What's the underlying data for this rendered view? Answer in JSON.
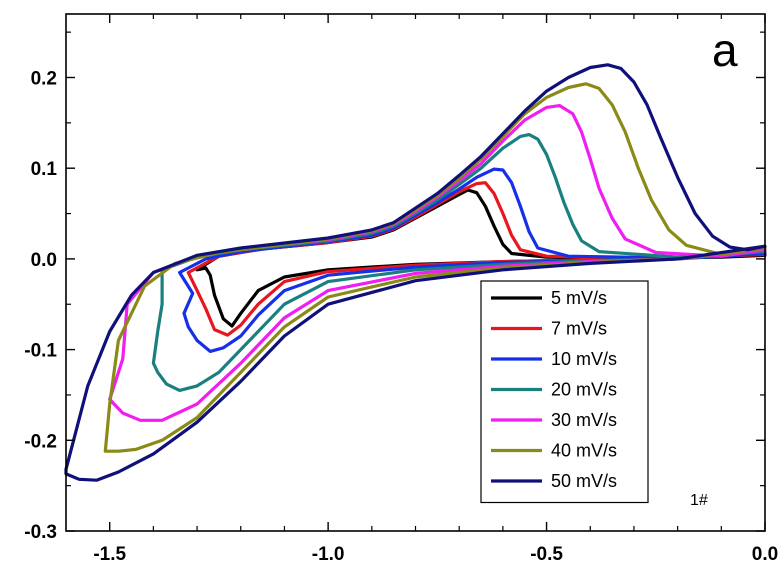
{
  "chart_data": {
    "type": "line",
    "title": "",
    "xlabel": "",
    "ylabel": "",
    "xlim": [
      -1.6,
      0.0
    ],
    "ylim": [
      -0.3,
      0.27
    ],
    "xticks": [
      -1.5,
      -1.0,
      -0.5,
      0.0
    ],
    "xtick_labels": [
      "-1.5",
      "-1.0",
      "-0.5",
      "0.0"
    ],
    "yticks": [
      -0.3,
      -0.2,
      -0.1,
      0.0,
      0.1,
      0.2
    ],
    "ytick_labels": [
      "-0.3",
      "-0.2",
      "-0.1",
      "0.0",
      "0.1",
      "0.2"
    ],
    "grid": false,
    "legend_position": "bottom-right",
    "panel_label": "a",
    "annotation": "1#",
    "series": [
      {
        "name": "5 mV/s",
        "color": "#000000",
        "upper": [
          [
            -1.3,
            -0.012
          ],
          [
            -1.25,
            0.003
          ],
          [
            -1.15,
            0.011
          ],
          [
            -1.0,
            0.018
          ],
          [
            -0.9,
            0.024
          ],
          [
            -0.85,
            0.032
          ],
          [
            -0.8,
            0.045
          ],
          [
            -0.75,
            0.058
          ],
          [
            -0.7,
            0.071
          ],
          [
            -0.68,
            0.076
          ],
          [
            -0.66,
            0.073
          ],
          [
            -0.64,
            0.058
          ],
          [
            -0.62,
            0.036
          ],
          [
            -0.6,
            0.016
          ],
          [
            -0.58,
            0.006
          ],
          [
            -0.5,
            0.002
          ],
          [
            -0.3,
            0.001
          ],
          [
            -0.1,
            0.002
          ],
          [
            0.0,
            0.004
          ]
        ],
        "lower": [
          [
            0.0,
            0.004
          ],
          [
            -0.2,
            0.001
          ],
          [
            -0.4,
            -0.001
          ],
          [
            -0.6,
            -0.003
          ],
          [
            -0.8,
            -0.006
          ],
          [
            -1.0,
            -0.012
          ],
          [
            -1.1,
            -0.02
          ],
          [
            -1.16,
            -0.035
          ],
          [
            -1.2,
            -0.06
          ],
          [
            -1.22,
            -0.074
          ],
          [
            -1.24,
            -0.066
          ],
          [
            -1.26,
            -0.04
          ],
          [
            -1.27,
            -0.018
          ],
          [
            -1.28,
            -0.01
          ],
          [
            -1.3,
            -0.012
          ]
        ]
      },
      {
        "name": "7 mV/s",
        "color": "#e8161e",
        "upper": [
          [
            -1.32,
            -0.015
          ],
          [
            -1.25,
            0.003
          ],
          [
            -1.15,
            0.011
          ],
          [
            -1.0,
            0.018
          ],
          [
            -0.9,
            0.025
          ],
          [
            -0.85,
            0.033
          ],
          [
            -0.8,
            0.046
          ],
          [
            -0.75,
            0.06
          ],
          [
            -0.7,
            0.074
          ],
          [
            -0.66,
            0.083
          ],
          [
            -0.64,
            0.084
          ],
          [
            -0.62,
            0.072
          ],
          [
            -0.6,
            0.05
          ],
          [
            -0.58,
            0.026
          ],
          [
            -0.56,
            0.01
          ],
          [
            -0.5,
            0.003
          ],
          [
            -0.3,
            0.001
          ],
          [
            -0.1,
            0.003
          ],
          [
            0.0,
            0.005
          ]
        ],
        "lower": [
          [
            0.0,
            0.005
          ],
          [
            -0.2,
            0.001
          ],
          [
            -0.4,
            -0.001
          ],
          [
            -0.6,
            -0.003
          ],
          [
            -0.8,
            -0.007
          ],
          [
            -1.0,
            -0.014
          ],
          [
            -1.1,
            -0.025
          ],
          [
            -1.16,
            -0.05
          ],
          [
            -1.2,
            -0.073
          ],
          [
            -1.23,
            -0.084
          ],
          [
            -1.26,
            -0.078
          ],
          [
            -1.28,
            -0.055
          ],
          [
            -1.3,
            -0.035
          ],
          [
            -1.31,
            -0.025
          ],
          [
            -1.32,
            -0.015
          ]
        ]
      },
      {
        "name": "10 mV/s",
        "color": "#1530e8",
        "upper": [
          [
            -1.34,
            -0.015
          ],
          [
            -1.28,
            0.0
          ],
          [
            -1.2,
            0.008
          ],
          [
            -1.0,
            0.019
          ],
          [
            -0.9,
            0.026
          ],
          [
            -0.85,
            0.034
          ],
          [
            -0.8,
            0.048
          ],
          [
            -0.75,
            0.062
          ],
          [
            -0.7,
            0.077
          ],
          [
            -0.66,
            0.09
          ],
          [
            -0.62,
            0.099
          ],
          [
            -0.6,
            0.098
          ],
          [
            -0.58,
            0.084
          ],
          [
            -0.56,
            0.058
          ],
          [
            -0.54,
            0.03
          ],
          [
            -0.52,
            0.012
          ],
          [
            -0.45,
            0.003
          ],
          [
            -0.2,
            0.001
          ],
          [
            0.0,
            0.006
          ]
        ],
        "lower": [
          [
            0.0,
            0.006
          ],
          [
            -0.2,
            0.0
          ],
          [
            -0.4,
            -0.002
          ],
          [
            -0.6,
            -0.004
          ],
          [
            -0.8,
            -0.009
          ],
          [
            -1.0,
            -0.018
          ],
          [
            -1.1,
            -0.035
          ],
          [
            -1.16,
            -0.062
          ],
          [
            -1.2,
            -0.085
          ],
          [
            -1.24,
            -0.098
          ],
          [
            -1.27,
            -0.102
          ],
          [
            -1.3,
            -0.09
          ],
          [
            -1.32,
            -0.075
          ],
          [
            -1.33,
            -0.06
          ],
          [
            -1.31,
            -0.038
          ],
          [
            -1.34,
            -0.015
          ]
        ]
      },
      {
        "name": "20 mV/s",
        "color": "#1a7f7f",
        "upper": [
          [
            -1.38,
            -0.012
          ],
          [
            -1.3,
            0.002
          ],
          [
            -1.2,
            0.01
          ],
          [
            -1.0,
            0.02
          ],
          [
            -0.9,
            0.028
          ],
          [
            -0.85,
            0.036
          ],
          [
            -0.8,
            0.05
          ],
          [
            -0.75,
            0.065
          ],
          [
            -0.7,
            0.082
          ],
          [
            -0.65,
            0.1
          ],
          [
            -0.6,
            0.122
          ],
          [
            -0.56,
            0.135
          ],
          [
            -0.54,
            0.137
          ],
          [
            -0.52,
            0.132
          ],
          [
            -0.5,
            0.115
          ],
          [
            -0.48,
            0.09
          ],
          [
            -0.46,
            0.062
          ],
          [
            -0.44,
            0.038
          ],
          [
            -0.42,
            0.02
          ],
          [
            -0.38,
            0.008
          ],
          [
            -0.2,
            0.002
          ],
          [
            0.0,
            0.008
          ]
        ],
        "lower": [
          [
            0.0,
            0.008
          ],
          [
            -0.2,
            0.0
          ],
          [
            -0.4,
            -0.002
          ],
          [
            -0.6,
            -0.006
          ],
          [
            -0.8,
            -0.012
          ],
          [
            -1.0,
            -0.025
          ],
          [
            -1.1,
            -0.05
          ],
          [
            -1.18,
            -0.09
          ],
          [
            -1.25,
            -0.125
          ],
          [
            -1.3,
            -0.14
          ],
          [
            -1.34,
            -0.145
          ],
          [
            -1.37,
            -0.138
          ],
          [
            -1.39,
            -0.125
          ],
          [
            -1.4,
            -0.115
          ],
          [
            -1.39,
            -0.08
          ],
          [
            -1.38,
            -0.05
          ],
          [
            -1.38,
            -0.012
          ]
        ]
      },
      {
        "name": "30 mV/s",
        "color": "#f01ef0",
        "upper": [
          [
            -1.46,
            -0.05
          ],
          [
            -1.4,
            -0.015
          ],
          [
            -1.3,
            0.003
          ],
          [
            -1.2,
            0.011
          ],
          [
            -1.0,
            0.021
          ],
          [
            -0.9,
            0.03
          ],
          [
            -0.85,
            0.038
          ],
          [
            -0.8,
            0.052
          ],
          [
            -0.75,
            0.068
          ],
          [
            -0.7,
            0.086
          ],
          [
            -0.65,
            0.105
          ],
          [
            -0.6,
            0.13
          ],
          [
            -0.55,
            0.153
          ],
          [
            -0.5,
            0.167
          ],
          [
            -0.47,
            0.169
          ],
          [
            -0.44,
            0.16
          ],
          [
            -0.42,
            0.14
          ],
          [
            -0.4,
            0.11
          ],
          [
            -0.38,
            0.078
          ],
          [
            -0.35,
            0.045
          ],
          [
            -0.32,
            0.022
          ],
          [
            -0.25,
            0.007
          ],
          [
            -0.1,
            0.003
          ],
          [
            0.0,
            0.01
          ]
        ],
        "lower": [
          [
            0.0,
            0.01
          ],
          [
            -0.2,
            0.0
          ],
          [
            -0.4,
            -0.003
          ],
          [
            -0.6,
            -0.008
          ],
          [
            -0.8,
            -0.016
          ],
          [
            -1.0,
            -0.035
          ],
          [
            -1.1,
            -0.065
          ],
          [
            -1.2,
            -0.115
          ],
          [
            -1.3,
            -0.16
          ],
          [
            -1.38,
            -0.178
          ],
          [
            -1.43,
            -0.178
          ],
          [
            -1.47,
            -0.17
          ],
          [
            -1.5,
            -0.155
          ],
          [
            -1.47,
            -0.11
          ],
          [
            -1.46,
            -0.05
          ]
        ]
      },
      {
        "name": "40 mV/s",
        "color": "#8a8a16",
        "upper": [
          [
            -1.48,
            -0.09
          ],
          [
            -1.42,
            -0.03
          ],
          [
            -1.35,
            -0.005
          ],
          [
            -1.25,
            0.007
          ],
          [
            -1.0,
            0.022
          ],
          [
            -0.9,
            0.031
          ],
          [
            -0.85,
            0.039
          ],
          [
            -0.8,
            0.054
          ],
          [
            -0.75,
            0.07
          ],
          [
            -0.7,
            0.089
          ],
          [
            -0.65,
            0.11
          ],
          [
            -0.6,
            0.135
          ],
          [
            -0.55,
            0.16
          ],
          [
            -0.5,
            0.178
          ],
          [
            -0.45,
            0.189
          ],
          [
            -0.41,
            0.193
          ],
          [
            -0.38,
            0.188
          ],
          [
            -0.35,
            0.17
          ],
          [
            -0.32,
            0.14
          ],
          [
            -0.29,
            0.1
          ],
          [
            -0.26,
            0.065
          ],
          [
            -0.22,
            0.032
          ],
          [
            -0.18,
            0.015
          ],
          [
            -0.1,
            0.005
          ],
          [
            0.0,
            0.012
          ]
        ],
        "lower": [
          [
            0.0,
            0.012
          ],
          [
            -0.2,
            0.0
          ],
          [
            -0.4,
            -0.004
          ],
          [
            -0.6,
            -0.01
          ],
          [
            -0.8,
            -0.02
          ],
          [
            -1.0,
            -0.042
          ],
          [
            -1.1,
            -0.075
          ],
          [
            -1.2,
            -0.125
          ],
          [
            -1.3,
            -0.175
          ],
          [
            -1.38,
            -0.2
          ],
          [
            -1.44,
            -0.21
          ],
          [
            -1.48,
            -0.212
          ],
          [
            -1.51,
            -0.212
          ],
          [
            -1.5,
            -0.16
          ],
          [
            -1.48,
            -0.09
          ]
        ]
      },
      {
        "name": "50 mV/s",
        "color": "#10107a",
        "upper": [
          [
            -1.6,
            -0.232
          ],
          [
            -1.55,
            -0.14
          ],
          [
            -1.5,
            -0.08
          ],
          [
            -1.45,
            -0.04
          ],
          [
            -1.4,
            -0.015
          ],
          [
            -1.3,
            0.004
          ],
          [
            -1.2,
            0.012
          ],
          [
            -1.0,
            0.023
          ],
          [
            -0.9,
            0.032
          ],
          [
            -0.85,
            0.04
          ],
          [
            -0.8,
            0.056
          ],
          [
            -0.75,
            0.072
          ],
          [
            -0.7,
            0.092
          ],
          [
            -0.65,
            0.113
          ],
          [
            -0.6,
            0.138
          ],
          [
            -0.55,
            0.163
          ],
          [
            -0.5,
            0.185
          ],
          [
            -0.45,
            0.2
          ],
          [
            -0.4,
            0.211
          ],
          [
            -0.36,
            0.214
          ],
          [
            -0.33,
            0.21
          ],
          [
            -0.3,
            0.195
          ],
          [
            -0.27,
            0.17
          ],
          [
            -0.24,
            0.135
          ],
          [
            -0.2,
            0.09
          ],
          [
            -0.16,
            0.05
          ],
          [
            -0.12,
            0.025
          ],
          [
            -0.08,
            0.013
          ],
          [
            -0.04,
            0.01
          ],
          [
            0.0,
            0.014
          ]
        ],
        "lower": [
          [
            0.0,
            0.014
          ],
          [
            -0.2,
            0.0
          ],
          [
            -0.4,
            -0.005
          ],
          [
            -0.6,
            -0.012
          ],
          [
            -0.8,
            -0.024
          ],
          [
            -1.0,
            -0.05
          ],
          [
            -1.1,
            -0.085
          ],
          [
            -1.2,
            -0.135
          ],
          [
            -1.3,
            -0.18
          ],
          [
            -1.4,
            -0.215
          ],
          [
            -1.48,
            -0.235
          ],
          [
            -1.53,
            -0.244
          ],
          [
            -1.57,
            -0.243
          ],
          [
            -1.6,
            -0.237
          ]
        ]
      }
    ]
  }
}
